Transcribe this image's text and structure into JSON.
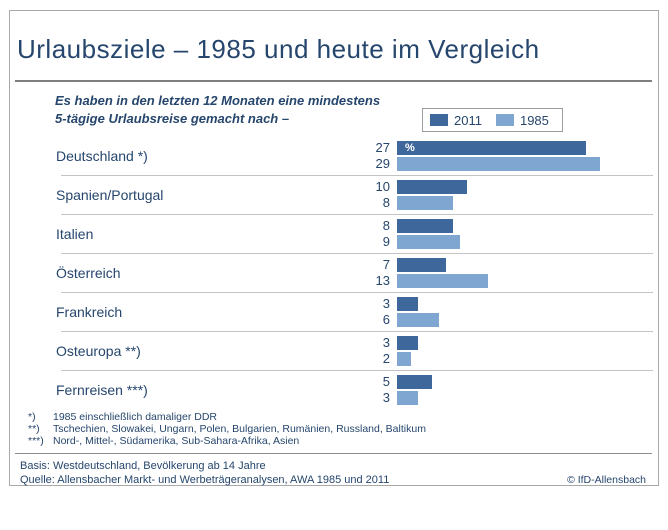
{
  "header": {
    "title": "Urlaubsziele – 1985 und heute im Vergleich"
  },
  "subtitle": {
    "line1": "Es haben in den letzten 12 Monaten eine mindestens",
    "line2": "5-tägige Urlaubsreise gemacht nach –"
  },
  "legend": {
    "items": [
      {
        "label": "2011",
        "color": "#3e689b"
      },
      {
        "label": "1985",
        "color": "#7fa6d1"
      }
    ]
  },
  "chart_data": {
    "type": "bar",
    "orientation": "horizontal",
    "title": "Urlaubsziele – 1985 und heute im Vergleich",
    "unit": "%",
    "categories": [
      "Deutschland *)",
      "Spanien/Portugal",
      "Italien",
      "Österreich",
      "Frankreich",
      "Osteuropa **)",
      "Fernreisen ***)"
    ],
    "series": [
      {
        "name": "2011",
        "color": "#3e689b",
        "values": [
          27,
          10,
          8,
          7,
          3,
          3,
          5
        ]
      },
      {
        "name": "1985",
        "color": "#7fa6d1",
        "values": [
          29,
          8,
          9,
          13,
          6,
          2,
          3
        ]
      }
    ],
    "xlim": [
      0,
      30
    ],
    "legend_position": "top-right",
    "grid": false,
    "value_labels": "left-of-bars"
  },
  "footnotes": [
    {
      "marker": "*)",
      "text": "1985 einschließlich damaliger DDR"
    },
    {
      "marker": "**)",
      "text": "Tschechien, Slowakei, Ungarn, Polen, Bulgarien, Rumänien, Russland, Baltikum"
    },
    {
      "marker": "***)",
      "text": "Nord-, Mittel-, Südamerika, Sub-Sahara-Afrika, Asien"
    }
  ],
  "footer": {
    "basis": "Basis: Westdeutschland, Bevölkerung ab 14 Jahre",
    "quelle": "Quelle: Allensbacher Markt- und Werbeträgeranalysen, AWA 1985 und 2011",
    "copyright": "© IfD-Allensbach"
  },
  "colors": {
    "navy_text": "#26466d",
    "bar_2011": "#3e689b",
    "bar_1985": "#7fa6d1",
    "row_separator": "#c4c4c4",
    "title_rule": "#7f7f7f",
    "frame_border": "#a9a9a9"
  }
}
